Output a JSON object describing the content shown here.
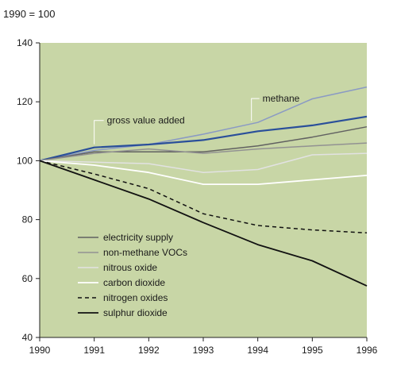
{
  "chart_data": {
    "type": "line",
    "ylabel": "1990 = 100",
    "x": [
      "1990",
      "1991",
      "1992",
      "1993",
      "1994",
      "1995",
      "1996"
    ],
    "xticks": [
      "1990",
      "1991",
      "1992",
      "1993",
      "1994",
      "1995",
      "1996"
    ],
    "yticks": [
      "40",
      "60",
      "80",
      "100",
      "120",
      "140"
    ],
    "ylim": [
      40,
      140
    ],
    "background": "#c8d6a6",
    "legend_position": "bottom-left",
    "grid": false,
    "series": [
      {
        "name": "methane",
        "values": [
          100,
          103.5,
          105.5,
          109,
          113,
          121,
          125
        ],
        "color": "#8a9ac4",
        "dash": "",
        "width": 1.5,
        "legend": false
      },
      {
        "name": "gross value added",
        "values": [
          100,
          104.5,
          105.5,
          107,
          110,
          112,
          115
        ],
        "color": "#2a4f9a",
        "dash": "",
        "width": 2.2,
        "legend": false
      },
      {
        "name": "electricity supply",
        "values": [
          100,
          103,
          103,
          103,
          105,
          108,
          111.5
        ],
        "color": "#616161",
        "dash": "",
        "width": 1.5,
        "legend": true
      },
      {
        "name": "non-methane VOCs",
        "values": [
          100,
          102.5,
          104,
          102.5,
          104,
          105,
          106
        ],
        "color": "#929292",
        "dash": "",
        "width": 1.5,
        "legend": true
      },
      {
        "name": "nitrous oxide",
        "values": [
          100,
          99.5,
          99,
          96,
          97,
          102,
          102.5
        ],
        "color": "#e2e2e2",
        "dash": "",
        "width": 1.5,
        "legend": true
      },
      {
        "name": "carbon dioxide",
        "values": [
          100,
          98.5,
          96,
          92,
          92,
          93.5,
          95
        ],
        "color": "#ffffff",
        "dash": "",
        "width": 1.8,
        "legend": true
      },
      {
        "name": "nitrogen oxides",
        "values": [
          100,
          95.5,
          90.5,
          82,
          78,
          76.5,
          75.5
        ],
        "color": "#111111",
        "dash": "5,4",
        "width": 1.5,
        "legend": true
      },
      {
        "name": "sulphur dioxide",
        "values": [
          100,
          93.5,
          87,
          79,
          71.5,
          66,
          57.5
        ],
        "color": "#111111",
        "dash": "",
        "width": 1.8,
        "legend": true
      }
    ],
    "annotations": [
      {
        "text": "methane",
        "series": "methane",
        "x_index": 4
      },
      {
        "text": "gross value added",
        "series": "gross value added",
        "x_index": 1
      }
    ]
  }
}
